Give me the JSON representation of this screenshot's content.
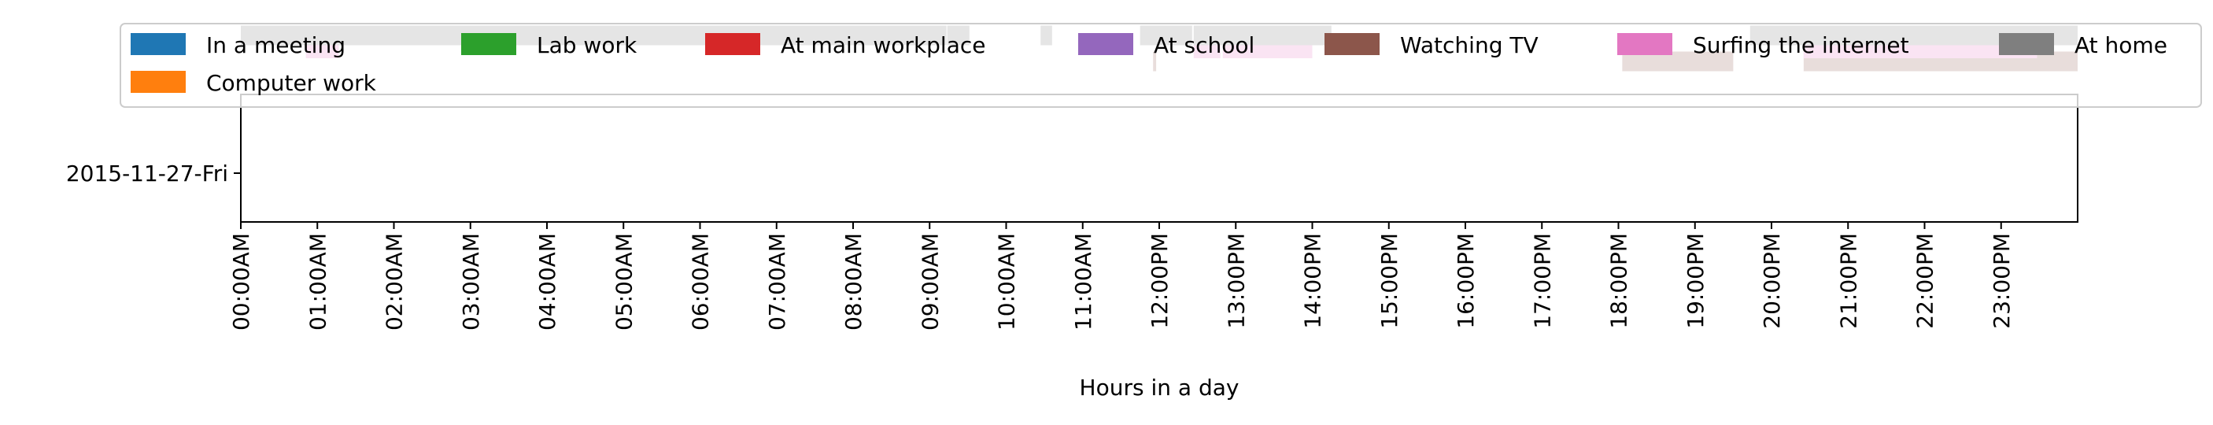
{
  "chart_data": {
    "type": "timeline",
    "xlabel": "Hours in a day",
    "ylabel": "",
    "xlim": [
      0,
      24
    ],
    "row_label": "2015-11-27-Fri",
    "x_ticks": [
      {
        "value": 0,
        "label": "00:00AM"
      },
      {
        "value": 1,
        "label": "01:00AM"
      },
      {
        "value": 2,
        "label": "02:00AM"
      },
      {
        "value": 3,
        "label": "03:00AM"
      },
      {
        "value": 4,
        "label": "04:00AM"
      },
      {
        "value": 5,
        "label": "05:00AM"
      },
      {
        "value": 6,
        "label": "06:00AM"
      },
      {
        "value": 7,
        "label": "07:00AM"
      },
      {
        "value": 8,
        "label": "08:00AM"
      },
      {
        "value": 9,
        "label": "09:00AM"
      },
      {
        "value": 10,
        "label": "10:00AM"
      },
      {
        "value": 11,
        "label": "11:00AM"
      },
      {
        "value": 12,
        "label": "12:00PM"
      },
      {
        "value": 13,
        "label": "13:00PM"
      },
      {
        "value": 14,
        "label": "14:00PM"
      },
      {
        "value": 15,
        "label": "15:00PM"
      },
      {
        "value": 16,
        "label": "16:00PM"
      },
      {
        "value": 17,
        "label": "17:00PM"
      },
      {
        "value": 18,
        "label": "18:00PM"
      },
      {
        "value": 19,
        "label": "19:00PM"
      },
      {
        "value": 20,
        "label": "20:00PM"
      },
      {
        "value": 21,
        "label": "21:00PM"
      },
      {
        "value": 22,
        "label": "22:00PM"
      },
      {
        "value": 23,
        "label": "23:00PM"
      }
    ],
    "legend": {
      "placement": "top",
      "entries": [
        {
          "name": "In a meeting",
          "color": "#1f77b4"
        },
        {
          "name": "Computer work",
          "color": "#ff7f0e"
        },
        {
          "name": "Lab work",
          "color": "#2ca02c"
        },
        {
          "name": "At main workplace",
          "color": "#d62728"
        },
        {
          "name": "At school",
          "color": "#9467bd"
        },
        {
          "name": "Watching TV",
          "color": "#8c564b"
        },
        {
          "name": "Surfing the internet",
          "color": "#e377c2"
        },
        {
          "name": "At home",
          "color": "#7f7f7f"
        }
      ]
    },
    "series": [
      {
        "name": "In a meeting",
        "lane": 0,
        "intervals": []
      },
      {
        "name": "Computer work",
        "lane": 1,
        "intervals": []
      },
      {
        "name": "Lab work",
        "lane": 2,
        "intervals": []
      },
      {
        "name": "At main workplace",
        "lane": 3,
        "intervals": []
      },
      {
        "name": "At school",
        "lane": 4,
        "intervals": []
      },
      {
        "name": "Watching TV",
        "lane": 5,
        "intervals": [
          [
            11.92,
            11.96
          ],
          [
            18.05,
            19.5
          ],
          [
            20.42,
            24.0
          ]
        ]
      },
      {
        "name": "Surfing the internet",
        "lane": 6,
        "intervals": [
          [
            0.85,
            1.28
          ],
          [
            12.45,
            12.8
          ],
          [
            12.83,
            14.0
          ],
          [
            20.42,
            23.47
          ]
        ]
      },
      {
        "name": "At home",
        "lane": 7,
        "intervals": [
          [
            0.0,
            9.22
          ],
          [
            9.23,
            9.52
          ],
          [
            10.45,
            10.6
          ],
          [
            11.75,
            12.43
          ],
          [
            12.45,
            14.25
          ],
          [
            19.72,
            24.0
          ]
        ]
      }
    ]
  }
}
